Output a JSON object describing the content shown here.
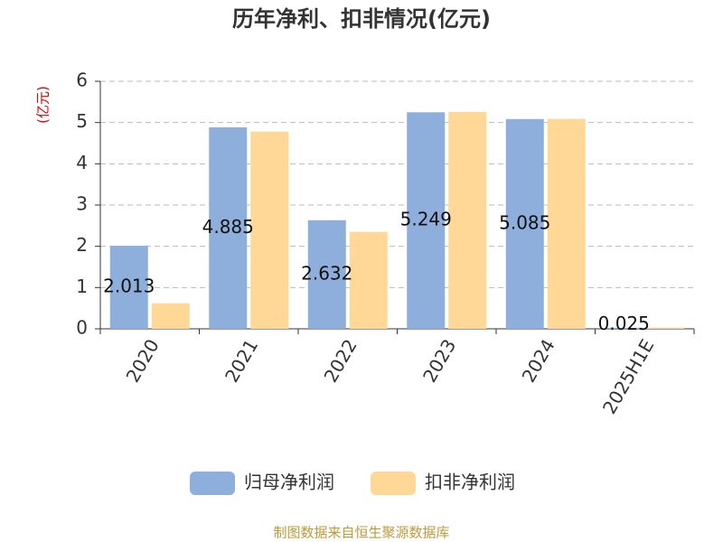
{
  "chart_data": {
    "type": "bar",
    "title": "历年净利、扣非情况(亿元)",
    "y_label": "(亿元)",
    "categories": [
      "2020",
      "2021",
      "2022",
      "2023",
      "2024",
      "2025H1E"
    ],
    "series": [
      {
        "name": "归母净利润",
        "color": "#8eaedb",
        "values": [
          2.013,
          4.885,
          2.632,
          5.249,
          5.085,
          0.025
        ],
        "show_labels": true
      },
      {
        "name": "扣非净利润",
        "color": "#ffd898",
        "values": [
          0.62,
          4.78,
          2.35,
          5.26,
          5.09,
          0.03
        ],
        "show_labels": false
      }
    ],
    "ylim": [
      0,
      6
    ],
    "yticks": [
      0,
      1,
      2,
      3,
      4,
      5,
      6
    ],
    "grid": true,
    "legend": "bottom",
    "source": "制图数据来自恒生聚源数据库"
  }
}
